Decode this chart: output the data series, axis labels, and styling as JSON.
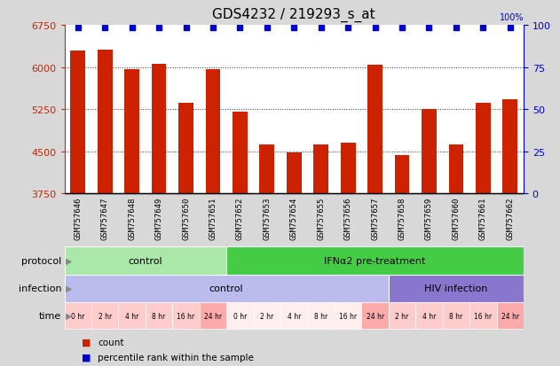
{
  "title": "GDS4232 / 219293_s_at",
  "samples": [
    "GSM757646",
    "GSM757647",
    "GSM757648",
    "GSM757649",
    "GSM757650",
    "GSM757651",
    "GSM757652",
    "GSM757653",
    "GSM757654",
    "GSM757655",
    "GSM757656",
    "GSM757657",
    "GSM757658",
    "GSM757659",
    "GSM757660",
    "GSM757661",
    "GSM757662"
  ],
  "counts": [
    6290,
    6310,
    5960,
    6060,
    5370,
    5960,
    5200,
    4630,
    4480,
    4620,
    4660,
    6040,
    4430,
    5260,
    4630,
    5360,
    5420
  ],
  "ylim_left": [
    3750,
    6750
  ],
  "ylim_right": [
    0,
    100
  ],
  "yticks_left": [
    3750,
    4500,
    5250,
    6000,
    6750
  ],
  "yticks_right": [
    0,
    25,
    50,
    75,
    100
  ],
  "bar_color": "#cc2200",
  "dot_color": "#0000cc",
  "bg_color": "#d8d8d8",
  "plot_bg": "#ffffff",
  "xticklabel_bg": "#c8c8c8",
  "protocol_labels": [
    {
      "text": "control",
      "start": 0,
      "end": 6,
      "color": "#aae8aa"
    },
    {
      "text": "IFNα2 pre-treatment",
      "start": 6,
      "end": 17,
      "color": "#44cc44"
    }
  ],
  "infection_labels": [
    {
      "text": "control",
      "start": 0,
      "end": 12,
      "color": "#bbbbee"
    },
    {
      "text": "HIV infection",
      "start": 12,
      "end": 17,
      "color": "#8877cc"
    }
  ],
  "time_labels": [
    "0 hr",
    "2 hr",
    "4 hr",
    "8 hr",
    "16 hr",
    "24 hr",
    "0 hr",
    "2 hr",
    "4 hr",
    "8 hr",
    "16 hr",
    "24 hr",
    "2 hr",
    "4 hr",
    "8 hr",
    "16 hr",
    "24 hr"
  ],
  "time_colors": [
    "#ffcccc",
    "#ffcccc",
    "#ffcccc",
    "#ffcccc",
    "#ffcccc",
    "#ffaaaa",
    "#ffeeee",
    "#ffeeee",
    "#ffeeee",
    "#ffeeee",
    "#ffeeee",
    "#ffaaaa",
    "#ffcccc",
    "#ffcccc",
    "#ffcccc",
    "#ffcccc",
    "#ffaaaa"
  ],
  "legend_count_color": "#cc2200",
  "legend_dot_color": "#0000cc",
  "grid_color": "#333333",
  "arrow_color": "#888888",
  "label_fontsize": 8,
  "title_fontsize": 11,
  "bar_width": 0.55,
  "dot_size": 5
}
